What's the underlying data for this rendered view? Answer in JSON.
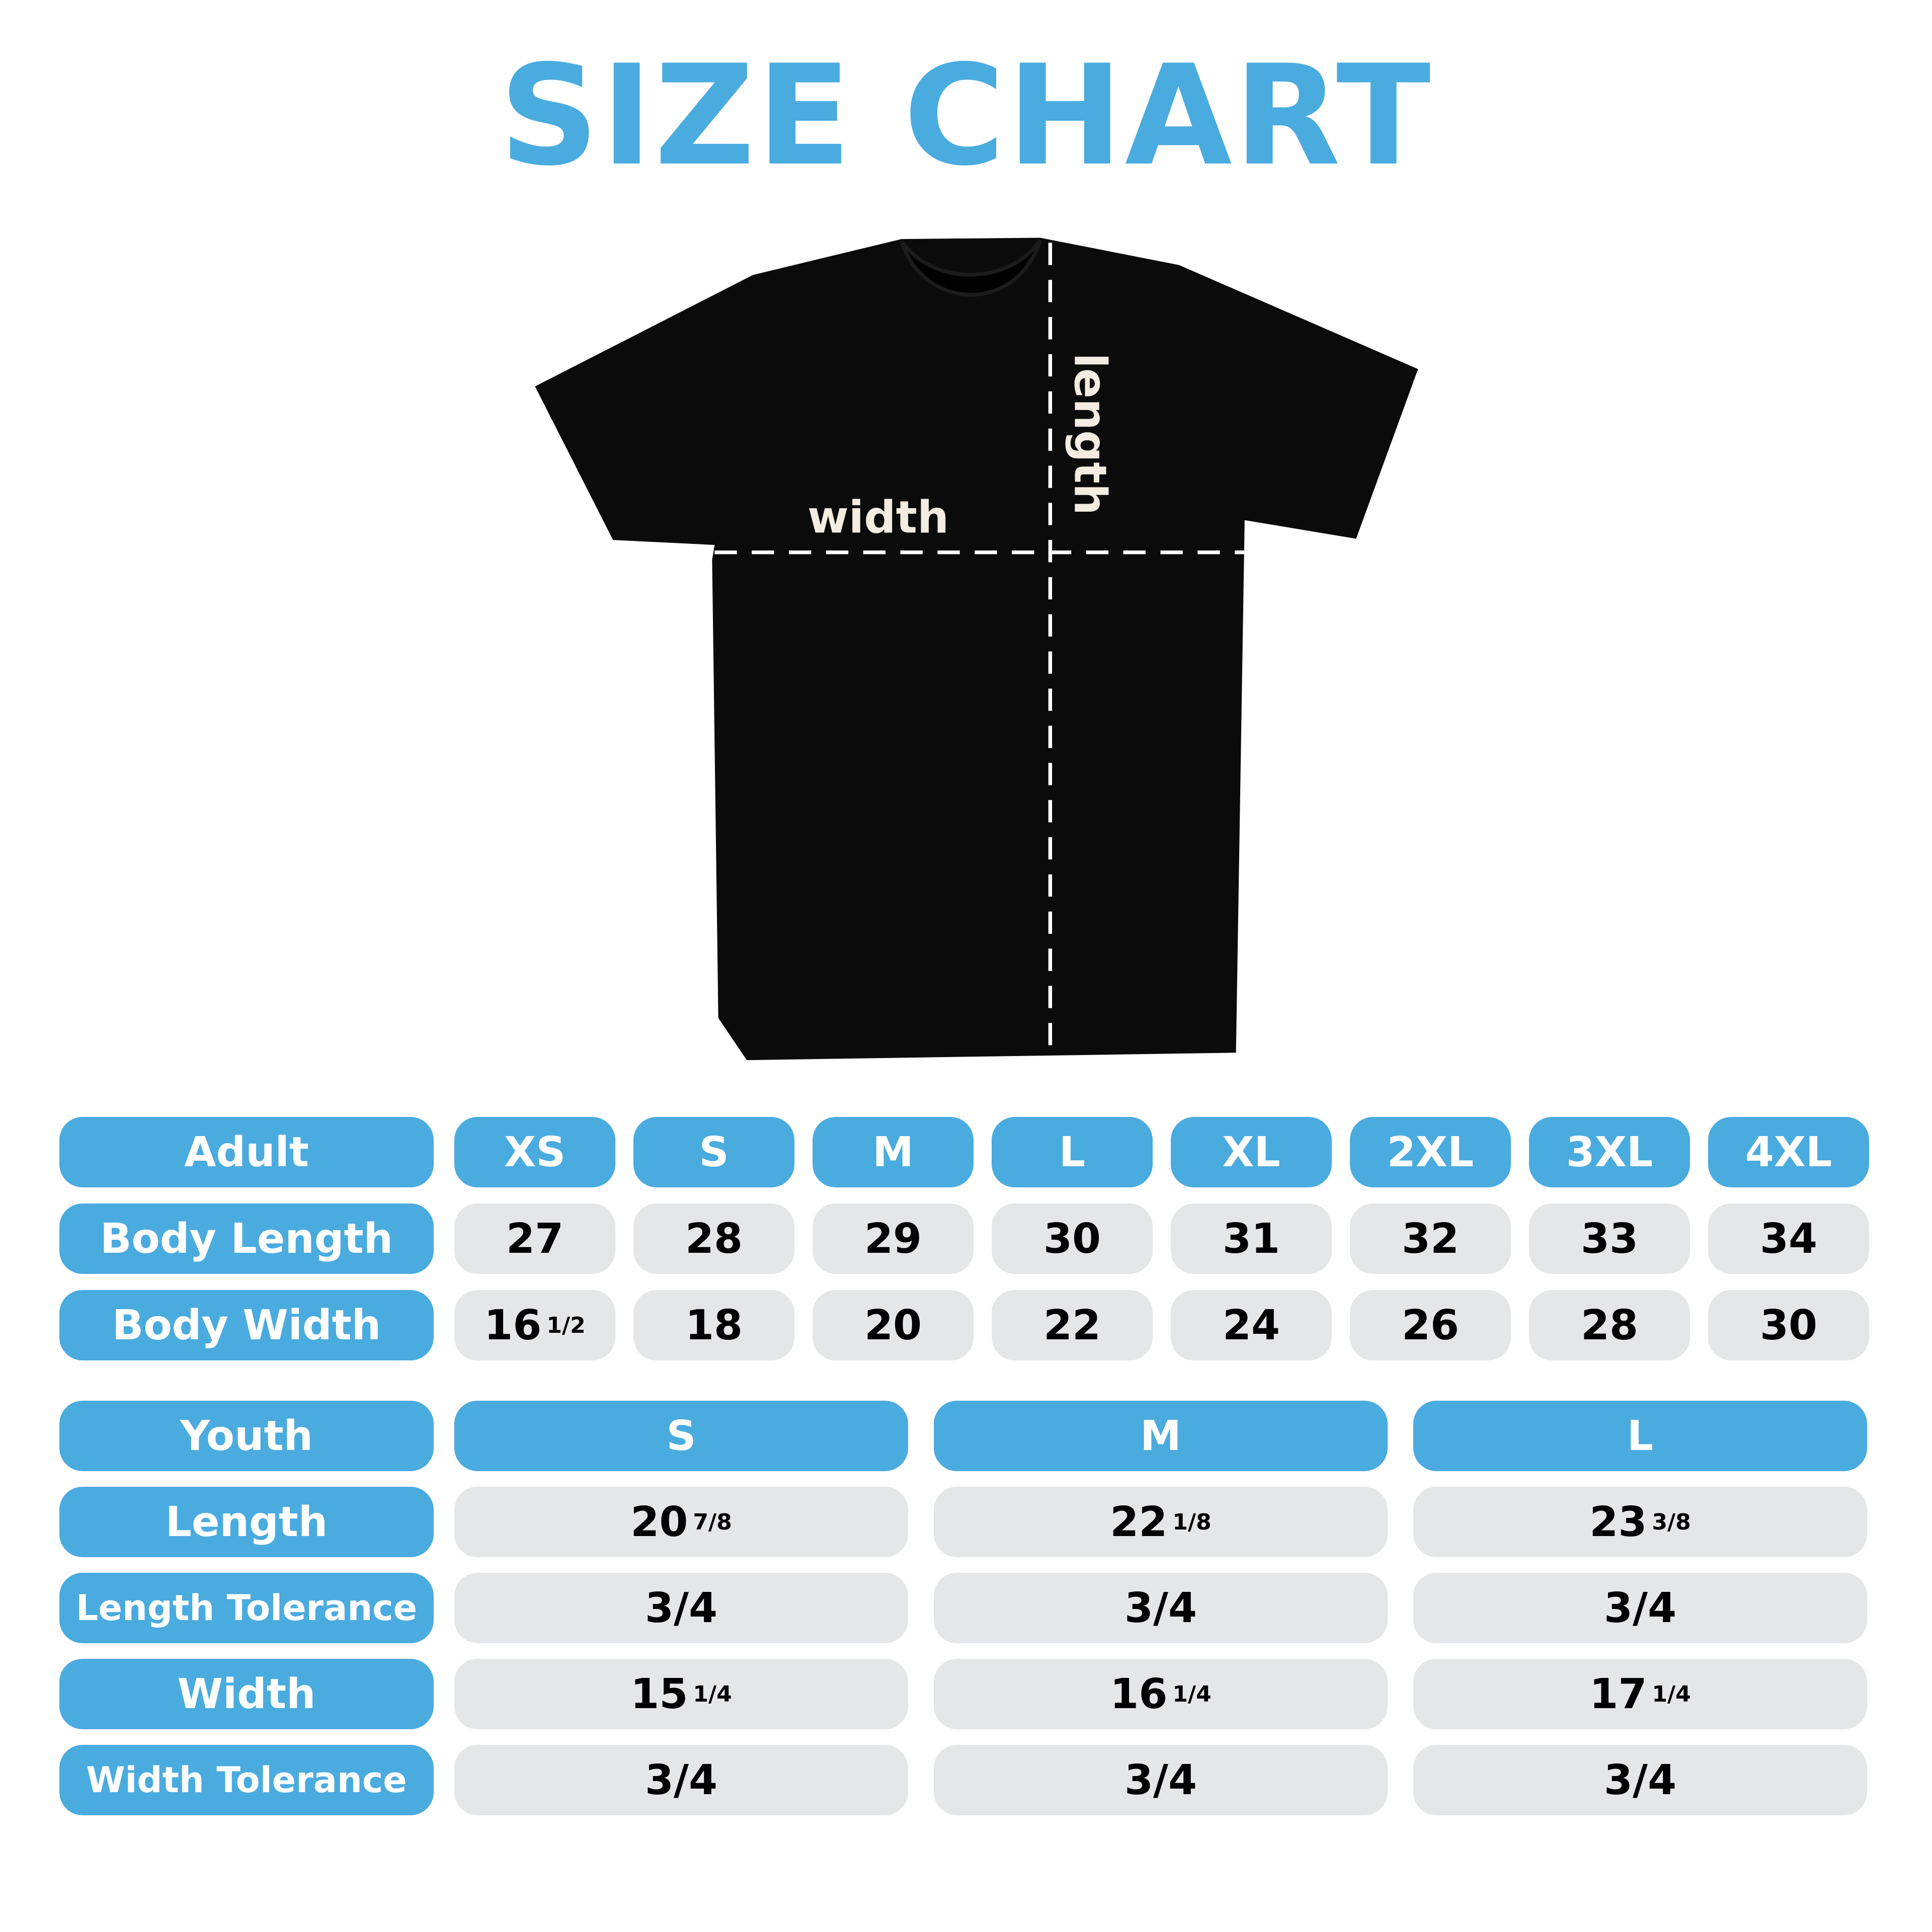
{
  "title": "SIZE CHART",
  "colors": {
    "accent": "#4aabdf",
    "cell": "#e5e6e8",
    "shirt": "#0b0b0b"
  },
  "diagram": {
    "width_label": "width",
    "length_label": "length"
  },
  "adult": {
    "header": "Adult",
    "sizes": [
      "XS",
      "S",
      "M",
      "L",
      "XL",
      "2XL",
      "3XL",
      "4XL"
    ],
    "rows": [
      {
        "label": "Body Length",
        "values": [
          {
            "whole": "27"
          },
          {
            "whole": "28"
          },
          {
            "whole": "29"
          },
          {
            "whole": "30"
          },
          {
            "whole": "31"
          },
          {
            "whole": "32"
          },
          {
            "whole": "33"
          },
          {
            "whole": "34"
          }
        ]
      },
      {
        "label": "Body Width",
        "values": [
          {
            "whole": "16",
            "frac": "1/2"
          },
          {
            "whole": "18"
          },
          {
            "whole": "20"
          },
          {
            "whole": "22"
          },
          {
            "whole": "24"
          },
          {
            "whole": "26"
          },
          {
            "whole": "28"
          },
          {
            "whole": "30"
          }
        ]
      }
    ]
  },
  "youth": {
    "header": "Youth",
    "sizes": [
      "S",
      "M",
      "L"
    ],
    "rows": [
      {
        "label": "Length",
        "values": [
          {
            "whole": "20",
            "frac": "7/8"
          },
          {
            "whole": "22",
            "frac": "1/8"
          },
          {
            "whole": "23",
            "frac": "3/8"
          }
        ]
      },
      {
        "label": "Length Tolerance",
        "values": [
          {
            "whole": "3/4"
          },
          {
            "whole": "3/4"
          },
          {
            "whole": "3/4"
          }
        ]
      },
      {
        "label": "Width",
        "values": [
          {
            "whole": "15",
            "frac": "1/4"
          },
          {
            "whole": "16",
            "frac": "1/4"
          },
          {
            "whole": "17",
            "frac": "1/4"
          }
        ]
      },
      {
        "label": "Width Tolerance",
        "values": [
          {
            "whole": "3/4"
          },
          {
            "whole": "3/4"
          },
          {
            "whole": "3/4"
          }
        ]
      }
    ]
  }
}
